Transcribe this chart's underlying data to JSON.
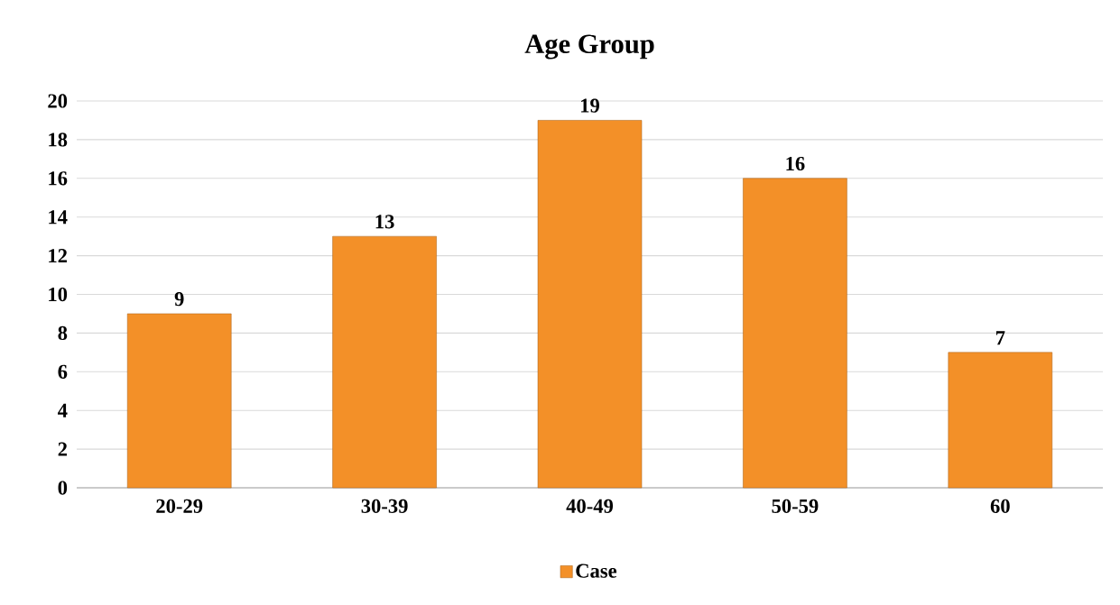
{
  "chart_data": {
    "type": "bar",
    "title": "Age Group",
    "categories": [
      "20-29",
      "30-39",
      "40-49",
      "50-59",
      "60"
    ],
    "series": [
      {
        "name": "Case",
        "color": "#f39028",
        "values": [
          9,
          13,
          19,
          16,
          7
        ]
      }
    ],
    "ylim": [
      0,
      20
    ],
    "yticks": [
      0,
      2,
      4,
      6,
      8,
      10,
      12,
      14,
      16,
      18,
      20
    ],
    "grid": "y",
    "legend": "bottom",
    "data_labels": true
  }
}
